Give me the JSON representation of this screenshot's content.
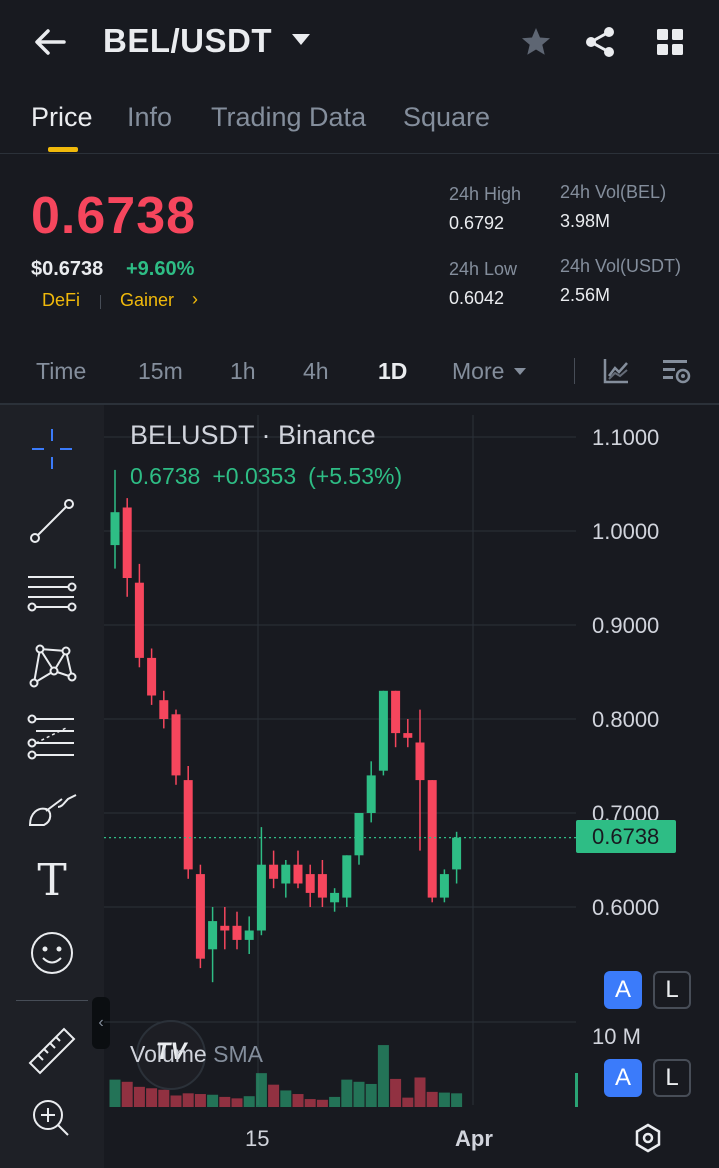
{
  "header": {
    "title": "BEL/USDT",
    "icons": [
      "back-arrow-icon",
      "caret-down-icon",
      "star-icon",
      "share-icon",
      "grid-icon"
    ]
  },
  "tabs": [
    {
      "label": "Price",
      "active": true
    },
    {
      "label": "Info",
      "active": false
    },
    {
      "label": "Trading Data",
      "active": false
    },
    {
      "label": "Square",
      "active": false
    }
  ],
  "price": {
    "last": "0.6738",
    "usd": "$0.6738",
    "change": "+9.60%",
    "tags": [
      "DeFi",
      "Gainer"
    ],
    "tag_arrow": "›",
    "colors": {
      "down": "#f6465d",
      "up": "#2ebd85",
      "accent": "#f0b90b"
    }
  },
  "stats": {
    "high_label": "24h High",
    "high_value": "0.6792",
    "low_label": "24h Low",
    "low_value": "0.6042",
    "vol_base_label": "24h Vol(BEL)",
    "vol_base_value": "3.98M",
    "vol_quote_label": "24h Vol(USDT)",
    "vol_quote_value": "2.56M"
  },
  "timeframes": {
    "items": [
      "Time",
      "15m",
      "1h",
      "4h",
      "1D",
      "More"
    ],
    "active": "1D"
  },
  "toolbar": {
    "tools": [
      "crosshair-icon",
      "trend-line-icon",
      "horizontal-lines-icon",
      "pattern-icon",
      "fib-retracement-icon",
      "brush-icon",
      "text-tool-icon",
      "emoji-icon",
      "ruler-icon",
      "zoom-in-icon"
    ],
    "text_tool_glyph": "T",
    "collapse_glyph": "‹"
  },
  "chart": {
    "title": "BELUSDT · Binance",
    "ohlc_close": "0.6738",
    "ohlc_change": "+0.0353",
    "ohlc_change_pct": "(+5.53%)",
    "price_axis": [
      "1.1000",
      "1.0000",
      "0.9000",
      "0.8000",
      "0.7000",
      "0.6000"
    ],
    "current_price_label": "0.6738",
    "volume_label": "Volume",
    "volume_sma_label": "SMA",
    "volume_axis_label": "10 M",
    "logo_text": "TV",
    "scale_buttons": {
      "auto": "A",
      "log": "L"
    },
    "date_axis": [
      "15",
      "Apr"
    ]
  },
  "chart_data": {
    "type": "candlestick",
    "symbol": "BELUSDT",
    "exchange": "Binance",
    "timeframe": "1D",
    "x_ticks": [
      "15",
      "Apr"
    ],
    "ylim": [
      0.52,
      1.12
    ],
    "y_ticks": [
      1.1,
      1.0,
      0.9,
      0.8,
      0.7,
      0.6
    ],
    "last_price": 0.6738,
    "candles": [
      {
        "o": 0.985,
        "h": 1.065,
        "l": 0.96,
        "c": 1.02
      },
      {
        "o": 1.025,
        "h": 1.035,
        "l": 0.93,
        "c": 0.95
      },
      {
        "o": 0.945,
        "h": 0.965,
        "l": 0.855,
        "c": 0.865
      },
      {
        "o": 0.865,
        "h": 0.875,
        "l": 0.815,
        "c": 0.825
      },
      {
        "o": 0.82,
        "h": 0.83,
        "l": 0.79,
        "c": 0.8
      },
      {
        "o": 0.805,
        "h": 0.81,
        "l": 0.73,
        "c": 0.74
      },
      {
        "o": 0.735,
        "h": 0.75,
        "l": 0.63,
        "c": 0.64
      },
      {
        "o": 0.635,
        "h": 0.645,
        "l": 0.535,
        "c": 0.545
      },
      {
        "o": 0.555,
        "h": 0.6,
        "l": 0.52,
        "c": 0.585
      },
      {
        "o": 0.58,
        "h": 0.6,
        "l": 0.555,
        "c": 0.575
      },
      {
        "o": 0.58,
        "h": 0.595,
        "l": 0.555,
        "c": 0.565
      },
      {
        "o": 0.565,
        "h": 0.59,
        "l": 0.55,
        "c": 0.575
      },
      {
        "o": 0.575,
        "h": 0.685,
        "l": 0.57,
        "c": 0.645
      },
      {
        "o": 0.645,
        "h": 0.66,
        "l": 0.62,
        "c": 0.63
      },
      {
        "o": 0.625,
        "h": 0.65,
        "l": 0.61,
        "c": 0.645
      },
      {
        "o": 0.645,
        "h": 0.66,
        "l": 0.62,
        "c": 0.625
      },
      {
        "o": 0.635,
        "h": 0.645,
        "l": 0.6,
        "c": 0.615
      },
      {
        "o": 0.635,
        "h": 0.65,
        "l": 0.6,
        "c": 0.61
      },
      {
        "o": 0.605,
        "h": 0.62,
        "l": 0.595,
        "c": 0.615
      },
      {
        "o": 0.61,
        "h": 0.655,
        "l": 0.6,
        "c": 0.655
      },
      {
        "o": 0.655,
        "h": 0.7,
        "l": 0.645,
        "c": 0.7
      },
      {
        "o": 0.7,
        "h": 0.755,
        "l": 0.69,
        "c": 0.74
      },
      {
        "o": 0.745,
        "h": 0.83,
        "l": 0.74,
        "c": 0.83
      },
      {
        "o": 0.83,
        "h": 0.83,
        "l": 0.77,
        "c": 0.785
      },
      {
        "o": 0.785,
        "h": 0.8,
        "l": 0.77,
        "c": 0.78
      },
      {
        "o": 0.775,
        "h": 0.81,
        "l": 0.66,
        "c": 0.735
      },
      {
        "o": 0.735,
        "h": 0.735,
        "l": 0.605,
        "c": 0.61
      },
      {
        "o": 0.61,
        "h": 0.64,
        "l": 0.605,
        "c": 0.635
      },
      {
        "o": 0.64,
        "h": 0.68,
        "l": 0.625,
        "c": 0.6738
      }
    ],
    "volume_m": [
      3.8,
      3.5,
      2.8,
      2.6,
      2.4,
      1.6,
      1.9,
      1.8,
      1.7,
      1.4,
      1.2,
      1.5,
      4.7,
      3.1,
      2.3,
      1.8,
      1.1,
      1.0,
      1.4,
      3.8,
      3.5,
      3.2,
      8.6,
      3.9,
      1.3,
      4.1,
      2.1,
      2.0,
      1.9
    ],
    "volume_axis": "10 M"
  }
}
